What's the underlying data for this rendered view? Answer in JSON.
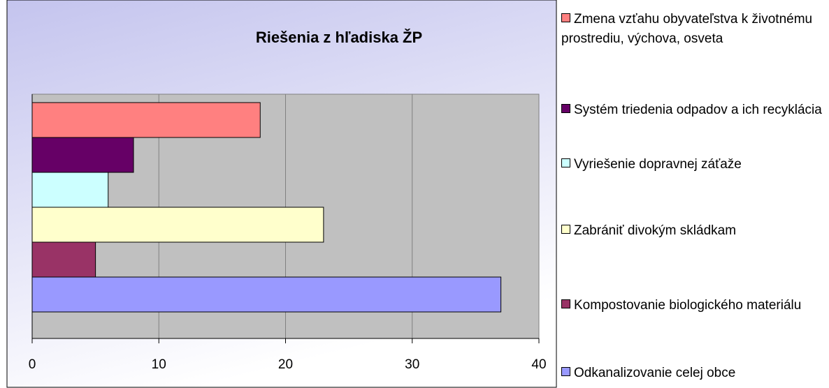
{
  "chart_data": {
    "type": "bar",
    "orientation": "horizontal",
    "title": "Riešenia z hľadiska ŽP",
    "series": [
      {
        "name": "Zmena vzťahu obyvateľstva k životnému prostrediu, výchova, osveta",
        "color": "#ff8080",
        "values": [
          18
        ]
      },
      {
        "name": "Systém triedenia odpadov a ich recyklácia",
        "color": "#660066",
        "values": [
          8
        ]
      },
      {
        "name": "Vyriešenie dopravnej záťaže",
        "color": "#ccffff",
        "values": [
          6
        ]
      },
      {
        "name": "Zabrániť divokým skládkam",
        "color": "#ffffcc",
        "values": [
          23
        ]
      },
      {
        "name": "Kompostovanie biologického materiálu",
        "color": "#993366",
        "values": [
          5
        ]
      },
      {
        "name": "Odkanalizovanie celej obce",
        "color": "#9999ff",
        "values": [
          37
        ]
      }
    ],
    "xlim": [
      0,
      40
    ],
    "xticks": [
      0,
      10,
      20,
      30,
      40
    ],
    "grid": true,
    "legend": "right"
  }
}
